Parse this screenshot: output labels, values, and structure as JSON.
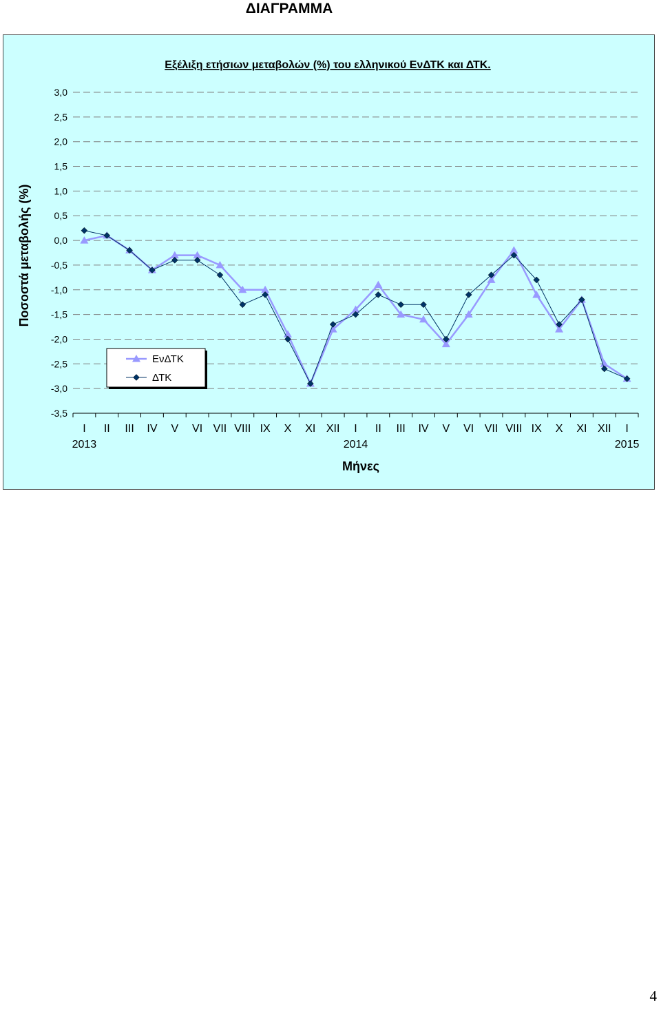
{
  "document": {
    "heading": "ΔΙΑΓΡΑΜΜΑ",
    "page_number": "4"
  },
  "chart_data": {
    "type": "line",
    "title": "Εξέλιξη ετήσιων μεταβολών (%) του ελληνικού ΕνΔΤΚ και ΔΤΚ.",
    "ylabel": "Ποσοστά μεταβολής (%)",
    "xlabel": "Μήνες",
    "ylim": [
      -3.5,
      3.0
    ],
    "ytick_step": 0.5,
    "y_tick_labels": [
      "3,0",
      "2,5",
      "2,0",
      "1,5",
      "1,0",
      "0,5",
      "0,0",
      "-0,5",
      "-1,0",
      "-1,5",
      "-2,0",
      "-2,5",
      "-3,0",
      "-3,5"
    ],
    "grid": "horizontal dashed",
    "legend_position": "bottom-left",
    "categories": [
      "I",
      "II",
      "III",
      "IV",
      "V",
      "VI",
      "VII",
      "VIII",
      "IX",
      "X",
      "XI",
      "XII",
      "I",
      "II",
      "III",
      "IV",
      "V",
      "VI",
      "VII",
      "VIII",
      "IX",
      "X",
      "XI",
      "XII",
      "I"
    ],
    "year_labels": [
      {
        "index": 0,
        "label": "2013"
      },
      {
        "index": 12,
        "label": "2014"
      },
      {
        "index": 24,
        "label": "2015"
      }
    ],
    "series": [
      {
        "name": "ΕνΔΤΚ",
        "color": "#9999ff",
        "marker": "triangle",
        "values": [
          0.0,
          0.1,
          -0.2,
          -0.6,
          -0.3,
          -0.3,
          -0.5,
          -1.0,
          -1.0,
          -1.9,
          -2.9,
          -1.8,
          -1.4,
          -0.9,
          -1.5,
          -1.6,
          -2.1,
          -1.5,
          -0.8,
          -0.2,
          -1.1,
          -1.8,
          -1.2,
          -2.5,
          -2.8
        ]
      },
      {
        "name": "ΔΤΚ",
        "color": "#003366",
        "marker": "diamond",
        "values": [
          0.2,
          0.1,
          -0.2,
          -0.6,
          -0.4,
          -0.4,
          -0.7,
          -1.3,
          -1.1,
          -2.0,
          -2.9,
          -1.7,
          -1.5,
          -1.1,
          -1.3,
          -1.3,
          -2.0,
          -1.1,
          -0.7,
          -0.3,
          -0.8,
          -1.7,
          -1.2,
          -2.6,
          -2.8
        ]
      }
    ]
  }
}
